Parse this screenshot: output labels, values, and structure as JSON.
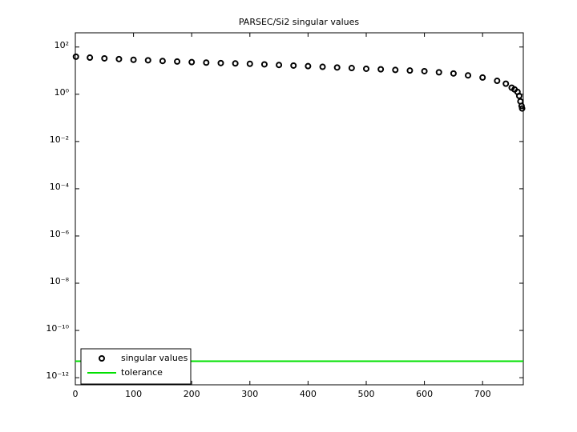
{
  "chart_data": {
    "type": "scatter",
    "title": "PARSEC/Si2 singular values",
    "log_y": true,
    "legend": "lower left",
    "xlim": [
      0,
      770
    ],
    "xticks": [
      0,
      100,
      200,
      300,
      400,
      500,
      600,
      700
    ],
    "ylim": [
      5e-13,
      400
    ],
    "yticks": [
      {
        "value": 1e-12,
        "label": "10⁻¹²"
      },
      {
        "value": 1e-10,
        "label": "10⁻¹⁰"
      },
      {
        "value": 1e-08,
        "label": "10⁻⁸"
      },
      {
        "value": 1e-06,
        "label": "10⁻⁶"
      },
      {
        "value": 0.0001,
        "label": "10⁻⁴"
      },
      {
        "value": 0.01,
        "label": "10⁻²"
      },
      {
        "value": 1,
        "label": "10⁰"
      },
      {
        "value": 100,
        "label": "10²"
      }
    ],
    "series": [
      {
        "name": "singular values",
        "color": "#000000",
        "style": "markers",
        "x": [
          1,
          25,
          50,
          75,
          100,
          125,
          150,
          175,
          200,
          225,
          250,
          275,
          300,
          325,
          350,
          375,
          400,
          425,
          450,
          475,
          500,
          525,
          550,
          575,
          600,
          625,
          650,
          675,
          700,
          725,
          740,
          750,
          755,
          760,
          763,
          765,
          767,
          768
        ],
        "values": [
          38.9,
          35.5,
          33.1,
          30.9,
          28.8,
          27.5,
          25.7,
          24.3,
          22.9,
          21.9,
          20.9,
          20.2,
          19.5,
          18.4,
          17.4,
          16.4,
          15.5,
          14.5,
          13.6,
          12.9,
          12.0,
          11.4,
          10.7,
          10.1,
          9.5,
          8.5,
          7.6,
          6.3,
          5.1,
          3.7,
          2.8,
          1.9,
          1.6,
          1.26,
          0.85,
          0.5,
          0.32,
          0.25
        ]
      },
      {
        "name": "tolerance",
        "color": "#00e000",
        "style": "line",
        "x": [
          0,
          770
        ],
        "values": [
          5e-12,
          5e-12
        ]
      }
    ]
  }
}
